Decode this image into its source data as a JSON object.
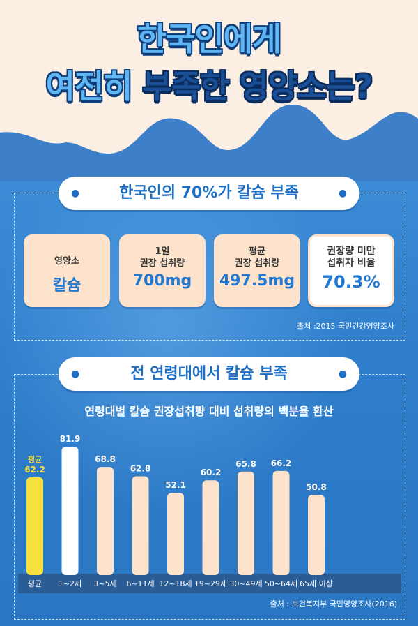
{
  "title": {
    "line1": "한국인에게",
    "line2_light": "여전히",
    "line2_dark": "부족한 영양소는?"
  },
  "section1": {
    "heading": "한국인의 70%가 칼슘 부족",
    "cards": [
      {
        "label": "영양소",
        "value": "칼슘"
      },
      {
        "label": "1일\n권장 섭취량",
        "value": "700mg"
      },
      {
        "label": "평균\n권장 섭취량",
        "value": "497.5mg"
      },
      {
        "label": "권장량 미만\n섭취자 비율",
        "value": "70.3%"
      }
    ],
    "source": "출처 :2015 국민건강영양조사"
  },
  "section2": {
    "heading": "전 연령대에서 칼슘 부족",
    "subtitle": "연령대별 칼슘 권장섭취량 대비 섭취량의 백분율 환산",
    "source": "출처 : 보건복지부 국민영양조사(2016)"
  },
  "chart_data": {
    "type": "bar",
    "title": "연령대별 칼슘 권장섭취량 대비 섭취량의 백분율 환산",
    "categories": [
      "평균",
      "1~2세",
      "3~5세",
      "6~11세",
      "12~18세",
      "19~29세",
      "30~49세",
      "50~64세",
      "65세 이상"
    ],
    "values": [
      62.2,
      81.9,
      68.8,
      62.8,
      52.1,
      60.2,
      65.8,
      66.2,
      50.8
    ],
    "value_labels": [
      "62.2",
      "81.9",
      "68.8",
      "62.8",
      "52.1",
      "60.2",
      "65.8",
      "66.2",
      "50.8"
    ],
    "avg_label": "평균",
    "ylim": [
      0,
      90
    ],
    "grid": false,
    "colors": {
      "average": "#f7e03b",
      "max": "#ffffff",
      "default": "#fde3cc"
    }
  }
}
